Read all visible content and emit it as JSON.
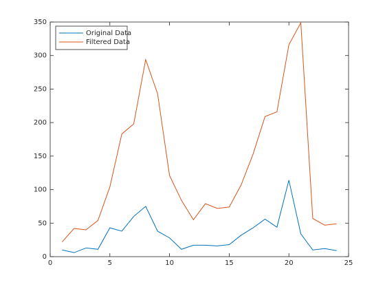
{
  "chart_data": {
    "type": "line",
    "x": [
      1,
      2,
      3,
      4,
      5,
      6,
      7,
      8,
      9,
      10,
      11,
      12,
      13,
      14,
      15,
      16,
      17,
      18,
      19,
      20,
      21,
      22,
      23,
      24
    ],
    "series": [
      {
        "name": "Original Data",
        "color": "#0072bd",
        "values": [
          10,
          6,
          13,
          11,
          43,
          38,
          60,
          75,
          38,
          28,
          11,
          17,
          17,
          16,
          18,
          32,
          43,
          56,
          44,
          114,
          34,
          10,
          12,
          9
        ]
      },
      {
        "name": "Filtered Data",
        "color": "#d95319",
        "values": [
          22,
          42,
          40,
          54,
          104,
          183,
          198,
          294,
          243,
          121,
          84,
          55,
          79,
          72,
          74,
          107,
          153,
          209,
          216,
          316,
          349,
          57,
          47,
          49
        ]
      }
    ],
    "xlim": [
      0,
      25
    ],
    "xticks": [
      0,
      5,
      10,
      15,
      20,
      25
    ],
    "ylim": [
      0,
      350
    ],
    "yticks": [
      0,
      50,
      100,
      150,
      200,
      250,
      300,
      350
    ],
    "legend": "northwest"
  }
}
